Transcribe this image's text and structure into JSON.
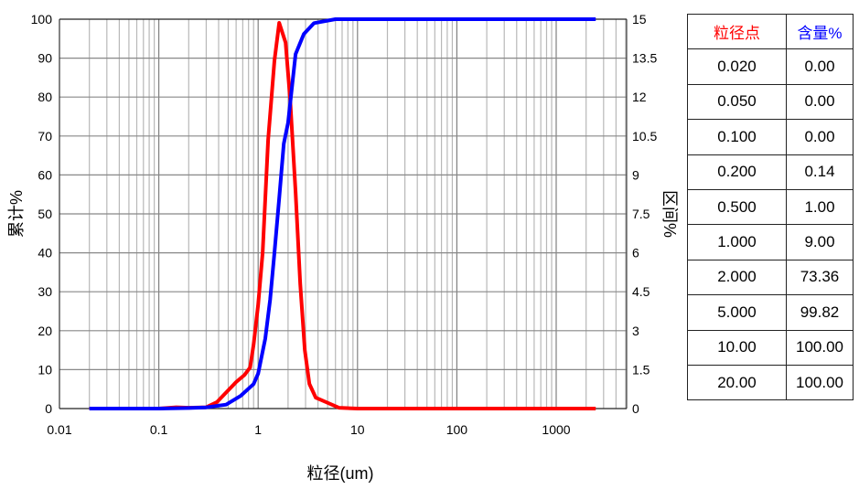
{
  "chart_data": {
    "type": "line",
    "xlabel": "粒径(um)",
    "ylabel": "累计%",
    "y2label": "区间%",
    "xscale": "log",
    "xlim": [
      0.01,
      5000
    ],
    "ylim": [
      0,
      100
    ],
    "y2lim": [
      0,
      15
    ],
    "xticks": [
      "0.01",
      "0.1",
      "1",
      "10",
      "100",
      "1000"
    ],
    "yticks": [
      "0",
      "10",
      "20",
      "30",
      "40",
      "50",
      "60",
      "70",
      "80",
      "90",
      "100"
    ],
    "y2ticks": [
      "0",
      "1.5",
      "3",
      "4.5",
      "6",
      "7.5",
      "9",
      "10.5",
      "12",
      "13.5",
      "15"
    ],
    "grid": true,
    "series": [
      {
        "name": "区间%",
        "axis": "right",
        "color": "#ff0000",
        "x": [
          0.02,
          0.1,
          0.15,
          0.2,
          0.3,
          0.385,
          0.6,
          0.73,
          0.83,
          0.9,
          1.0,
          1.11,
          1.26,
          1.46,
          1.63,
          1.89,
          2.1,
          2.38,
          2.65,
          2.95,
          3.28,
          3.8,
          6.5,
          10,
          100,
          2500
        ],
        "y": [
          0,
          0,
          0.05,
          0.03,
          0.05,
          0.25,
          1.02,
          1.3,
          1.58,
          2.46,
          4.0,
          6.0,
          10.35,
          13.4,
          14.86,
          14.1,
          11.9,
          8.35,
          4.8,
          2.25,
          0.95,
          0.42,
          0.03,
          0,
          0,
          0
        ]
      },
      {
        "name": "累计%",
        "axis": "left",
        "color": "#0000ff",
        "x": [
          0.02,
          0.1,
          0.2,
          0.3,
          0.476,
          0.67,
          0.9,
          1.0,
          1.18,
          1.32,
          1.46,
          1.63,
          1.81,
          2.0,
          2.38,
          2.88,
          3.65,
          6.0,
          100,
          2500
        ],
        "y": [
          0,
          0,
          0.14,
          0.3,
          1,
          3.3,
          6.3,
          9.0,
          18,
          28,
          40,
          54,
          68,
          73.4,
          91,
          96.2,
          99,
          100,
          100,
          100
        ]
      }
    ]
  },
  "table": {
    "headers": [
      "粒径点",
      "含量%"
    ],
    "header_colors": [
      "#ff0000",
      "#0000ff"
    ],
    "rows": [
      [
        "0.020",
        "0.00"
      ],
      [
        "0.050",
        "0.00"
      ],
      [
        "0.100",
        "0.00"
      ],
      [
        "0.200",
        "0.14"
      ],
      [
        "0.500",
        "1.00"
      ],
      [
        "1.000",
        "9.00"
      ],
      [
        "2.000",
        "73.36"
      ],
      [
        "5.000",
        "99.82"
      ],
      [
        "10.00",
        "100.00"
      ],
      [
        "20.00",
        "100.00"
      ]
    ]
  }
}
